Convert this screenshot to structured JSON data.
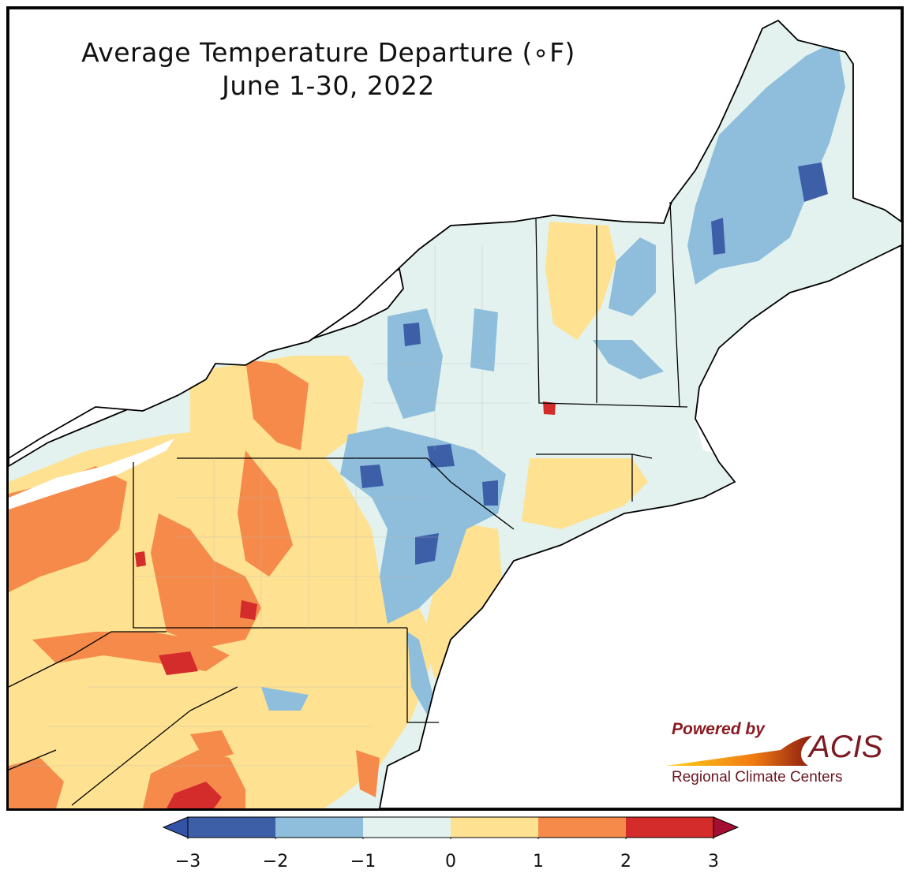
{
  "title": {
    "line1": "Average Temperature Departure (∘F)",
    "line2": "June 1-30, 2022"
  },
  "logo": {
    "powered_by": "Powered by",
    "brand": "ACIS",
    "subtitle": "Regional Climate Centers"
  },
  "colorbar": {
    "bins": [
      {
        "range": [
          -3,
          -2
        ],
        "color": "#3d5fa8"
      },
      {
        "range": [
          -2,
          -1
        ],
        "color": "#8fbedd"
      },
      {
        "range": [
          -1,
          0
        ],
        "color": "#e3f2ee"
      },
      {
        "range": [
          0,
          1
        ],
        "color": "#fee191"
      },
      {
        "range": [
          1,
          2
        ],
        "color": "#f58a4b"
      },
      {
        "range": [
          2,
          3
        ],
        "color": "#d42b2b"
      }
    ],
    "under_color": "#3353a6",
    "over_color": "#a50f33",
    "ticks": [
      "−3",
      "−2",
      "−1",
      "0",
      "1",
      "2",
      "3"
    ]
  },
  "colors": {
    "water": "#ffffff",
    "border": "#000000"
  }
}
